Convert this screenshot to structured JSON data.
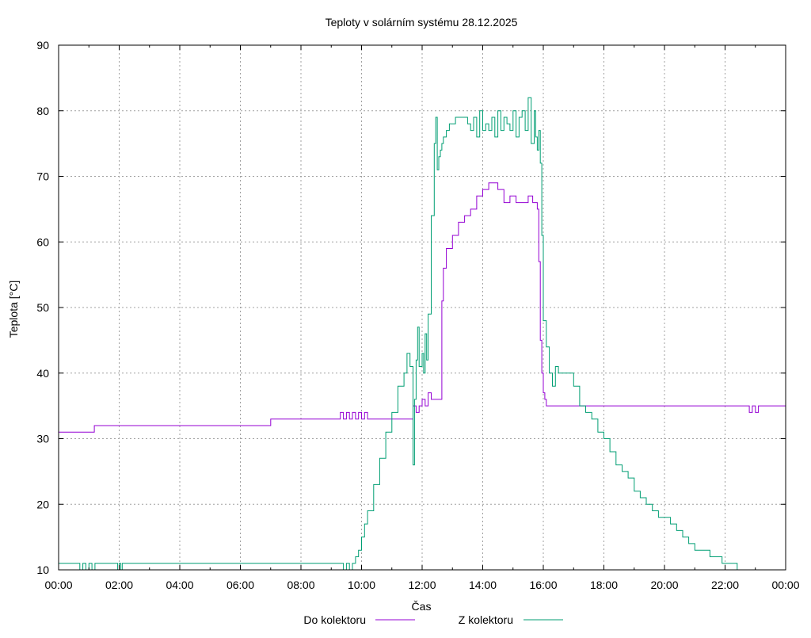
{
  "chart_data": {
    "type": "line",
    "title": "Teploty v solárním systému 28.12.2025",
    "xlabel": "Čas",
    "ylabel": "Teplota [°C]",
    "xlim": [
      0,
      24
    ],
    "ylim": [
      10,
      90
    ],
    "grid": true,
    "legend_position": "bottom",
    "x_ticks": [
      0,
      2,
      4,
      6,
      8,
      10,
      12,
      14,
      16,
      18,
      20,
      22,
      24
    ],
    "x_tick_labels": [
      "00:00",
      "02:00",
      "04:00",
      "06:00",
      "08:00",
      "10:00",
      "12:00",
      "14:00",
      "16:00",
      "18:00",
      "20:00",
      "22:00",
      "00:00"
    ],
    "y_ticks": [
      10,
      20,
      30,
      40,
      50,
      60,
      70,
      80,
      90
    ],
    "y_tick_labels": [
      "10",
      "20",
      "30",
      "40",
      "50",
      "60",
      "70",
      "80",
      "90"
    ],
    "series": [
      {
        "name": "Do kolektoru",
        "color": "#9400d3",
        "x": [
          0,
          1.18,
          1.18,
          7.0,
          7.0,
          9.2,
          9.3,
          9.4,
          9.5,
          9.6,
          9.7,
          9.8,
          9.9,
          10.0,
          10.1,
          10.2,
          11.6,
          11.7,
          11.8,
          11.9,
          12.0,
          12.1,
          12.2,
          12.3,
          12.6,
          12.65,
          12.7,
          12.8,
          13.0,
          13.2,
          13.4,
          13.6,
          13.8,
          14.0,
          14.2,
          14.3,
          14.5,
          14.7,
          14.9,
          15.1,
          15.3,
          15.5,
          15.65,
          15.8,
          15.85,
          15.9,
          15.95,
          16.0,
          16.05,
          16.1,
          16.2,
          18.0,
          22.0,
          22.7,
          22.8,
          22.9,
          23.0,
          23.1,
          23.2,
          23.95,
          24.0
        ],
        "y": [
          31,
          31,
          32,
          32,
          33,
          33,
          34,
          33,
          34,
          33,
          34,
          33,
          34,
          33,
          34,
          33,
          33,
          35,
          34,
          35,
          36,
          35,
          37,
          36,
          36,
          51,
          56,
          59,
          61,
          63,
          64,
          65,
          67,
          68,
          69,
          69,
          68,
          66,
          67,
          66,
          66,
          67,
          66,
          65,
          57,
          45,
          40,
          37,
          36,
          35,
          35,
          35,
          35,
          35,
          34,
          35,
          34,
          35,
          35,
          35,
          34
        ]
      },
      {
        "name": "Z kolektoru",
        "color": "#009e73",
        "x": [
          0,
          0.6,
          0.7,
          0.8,
          0.9,
          1.0,
          1.1,
          1.2,
          1.9,
          1.95,
          2.0,
          2.05,
          2.1,
          9.3,
          9.4,
          9.5,
          9.6,
          9.7,
          9.8,
          9.9,
          10.0,
          10.1,
          10.2,
          10.4,
          10.6,
          10.8,
          11.0,
          11.2,
          11.4,
          11.5,
          11.6,
          11.7,
          11.75,
          11.8,
          11.85,
          11.9,
          12.0,
          12.05,
          12.1,
          12.15,
          12.2,
          12.3,
          12.4,
          12.45,
          12.5,
          12.55,
          12.6,
          12.65,
          12.7,
          12.8,
          12.9,
          13.0,
          13.1,
          13.2,
          13.3,
          13.4,
          13.5,
          13.6,
          13.7,
          13.8,
          13.9,
          14.0,
          14.1,
          14.2,
          14.3,
          14.4,
          14.5,
          14.6,
          14.7,
          14.8,
          14.9,
          15.0,
          15.1,
          15.2,
          15.3,
          15.4,
          15.5,
          15.6,
          15.7,
          15.75,
          15.8,
          15.85,
          15.9,
          15.95,
          16.0,
          16.1,
          16.2,
          16.3,
          16.4,
          16.5,
          16.8,
          17.0,
          17.2,
          17.4,
          17.6,
          17.8,
          18.0,
          18.2,
          18.4,
          18.6,
          18.8,
          19.0,
          19.2,
          19.4,
          19.6,
          19.8,
          20.0,
          20.2,
          20.4,
          20.6,
          20.8,
          21.0,
          21.5,
          21.9,
          22.0,
          22.4,
          22.5,
          22.9,
          23.0,
          23.5,
          24.0
        ],
        "y": [
          11,
          11,
          10,
          11,
          10,
          11,
          10,
          11,
          11,
          10,
          11,
          10,
          11,
          11,
          10,
          11,
          10,
          11,
          12,
          13,
          15,
          17,
          19,
          23,
          27,
          31,
          34,
          38,
          40,
          43,
          41,
          26,
          36,
          42,
          47,
          41,
          43,
          40,
          46,
          42,
          49,
          64,
          75,
          79,
          71,
          73,
          74,
          75,
          76,
          77,
          78,
          78,
          79,
          79,
          79,
          79,
          78,
          77,
          79,
          76,
          80,
          77,
          78,
          77,
          79,
          76,
          80,
          77,
          79,
          78,
          77,
          80,
          76,
          79,
          80,
          77,
          82,
          75,
          80,
          76,
          74,
          77,
          72,
          61,
          48,
          44,
          40,
          38,
          41,
          40,
          40,
          38,
          35,
          34,
          33,
          31,
          30,
          28,
          26,
          25,
          24,
          22,
          21,
          20,
          19,
          18,
          18,
          17,
          16,
          15,
          14,
          13,
          12,
          11,
          11,
          10,
          10,
          10,
          10,
          10,
          10
        ]
      }
    ]
  }
}
